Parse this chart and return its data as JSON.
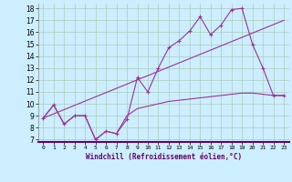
{
  "xlabel": "Windchill (Refroidissement éolien,°C)",
  "background_color": "#cceeff",
  "grid_color": "#aaccbb",
  "line_color": "#993399",
  "xlim": [
    -0.5,
    23.5
  ],
  "ylim": [
    6.8,
    18.4
  ],
  "yticks": [
    7,
    8,
    9,
    10,
    11,
    12,
    13,
    14,
    15,
    16,
    17,
    18
  ],
  "xticks": [
    0,
    1,
    2,
    3,
    4,
    5,
    6,
    7,
    8,
    9,
    10,
    11,
    12,
    13,
    14,
    15,
    16,
    17,
    18,
    19,
    20,
    21,
    22,
    23
  ],
  "line1_x": [
    0,
    1,
    2,
    3,
    4,
    5,
    6,
    7,
    8,
    9,
    10,
    11,
    12,
    13,
    14,
    15,
    16,
    17,
    18,
    19,
    20,
    21,
    22,
    23
  ],
  "line1_y": [
    8.8,
    9.9,
    8.3,
    9.0,
    9.0,
    7.0,
    7.7,
    7.5,
    8.7,
    12.2,
    11.0,
    13.0,
    14.7,
    15.3,
    16.1,
    17.3,
    15.8,
    16.6,
    17.9,
    18.0,
    15.0,
    13.0,
    10.7,
    10.7
  ],
  "line2_x": [
    0,
    1,
    2,
    3,
    4,
    5,
    6,
    7,
    8,
    9,
    10,
    11,
    12,
    13,
    14,
    15,
    16,
    17,
    18,
    19,
    20,
    21,
    22,
    23
  ],
  "line2_y": [
    8.8,
    9.9,
    8.3,
    9.0,
    9.0,
    7.0,
    7.7,
    7.5,
    9.0,
    9.6,
    9.8,
    10.0,
    10.2,
    10.3,
    10.4,
    10.5,
    10.6,
    10.7,
    10.8,
    10.9,
    10.9,
    10.8,
    10.7,
    10.7
  ],
  "line3_x": [
    0,
    23
  ],
  "line3_y": [
    8.8,
    17.0
  ]
}
